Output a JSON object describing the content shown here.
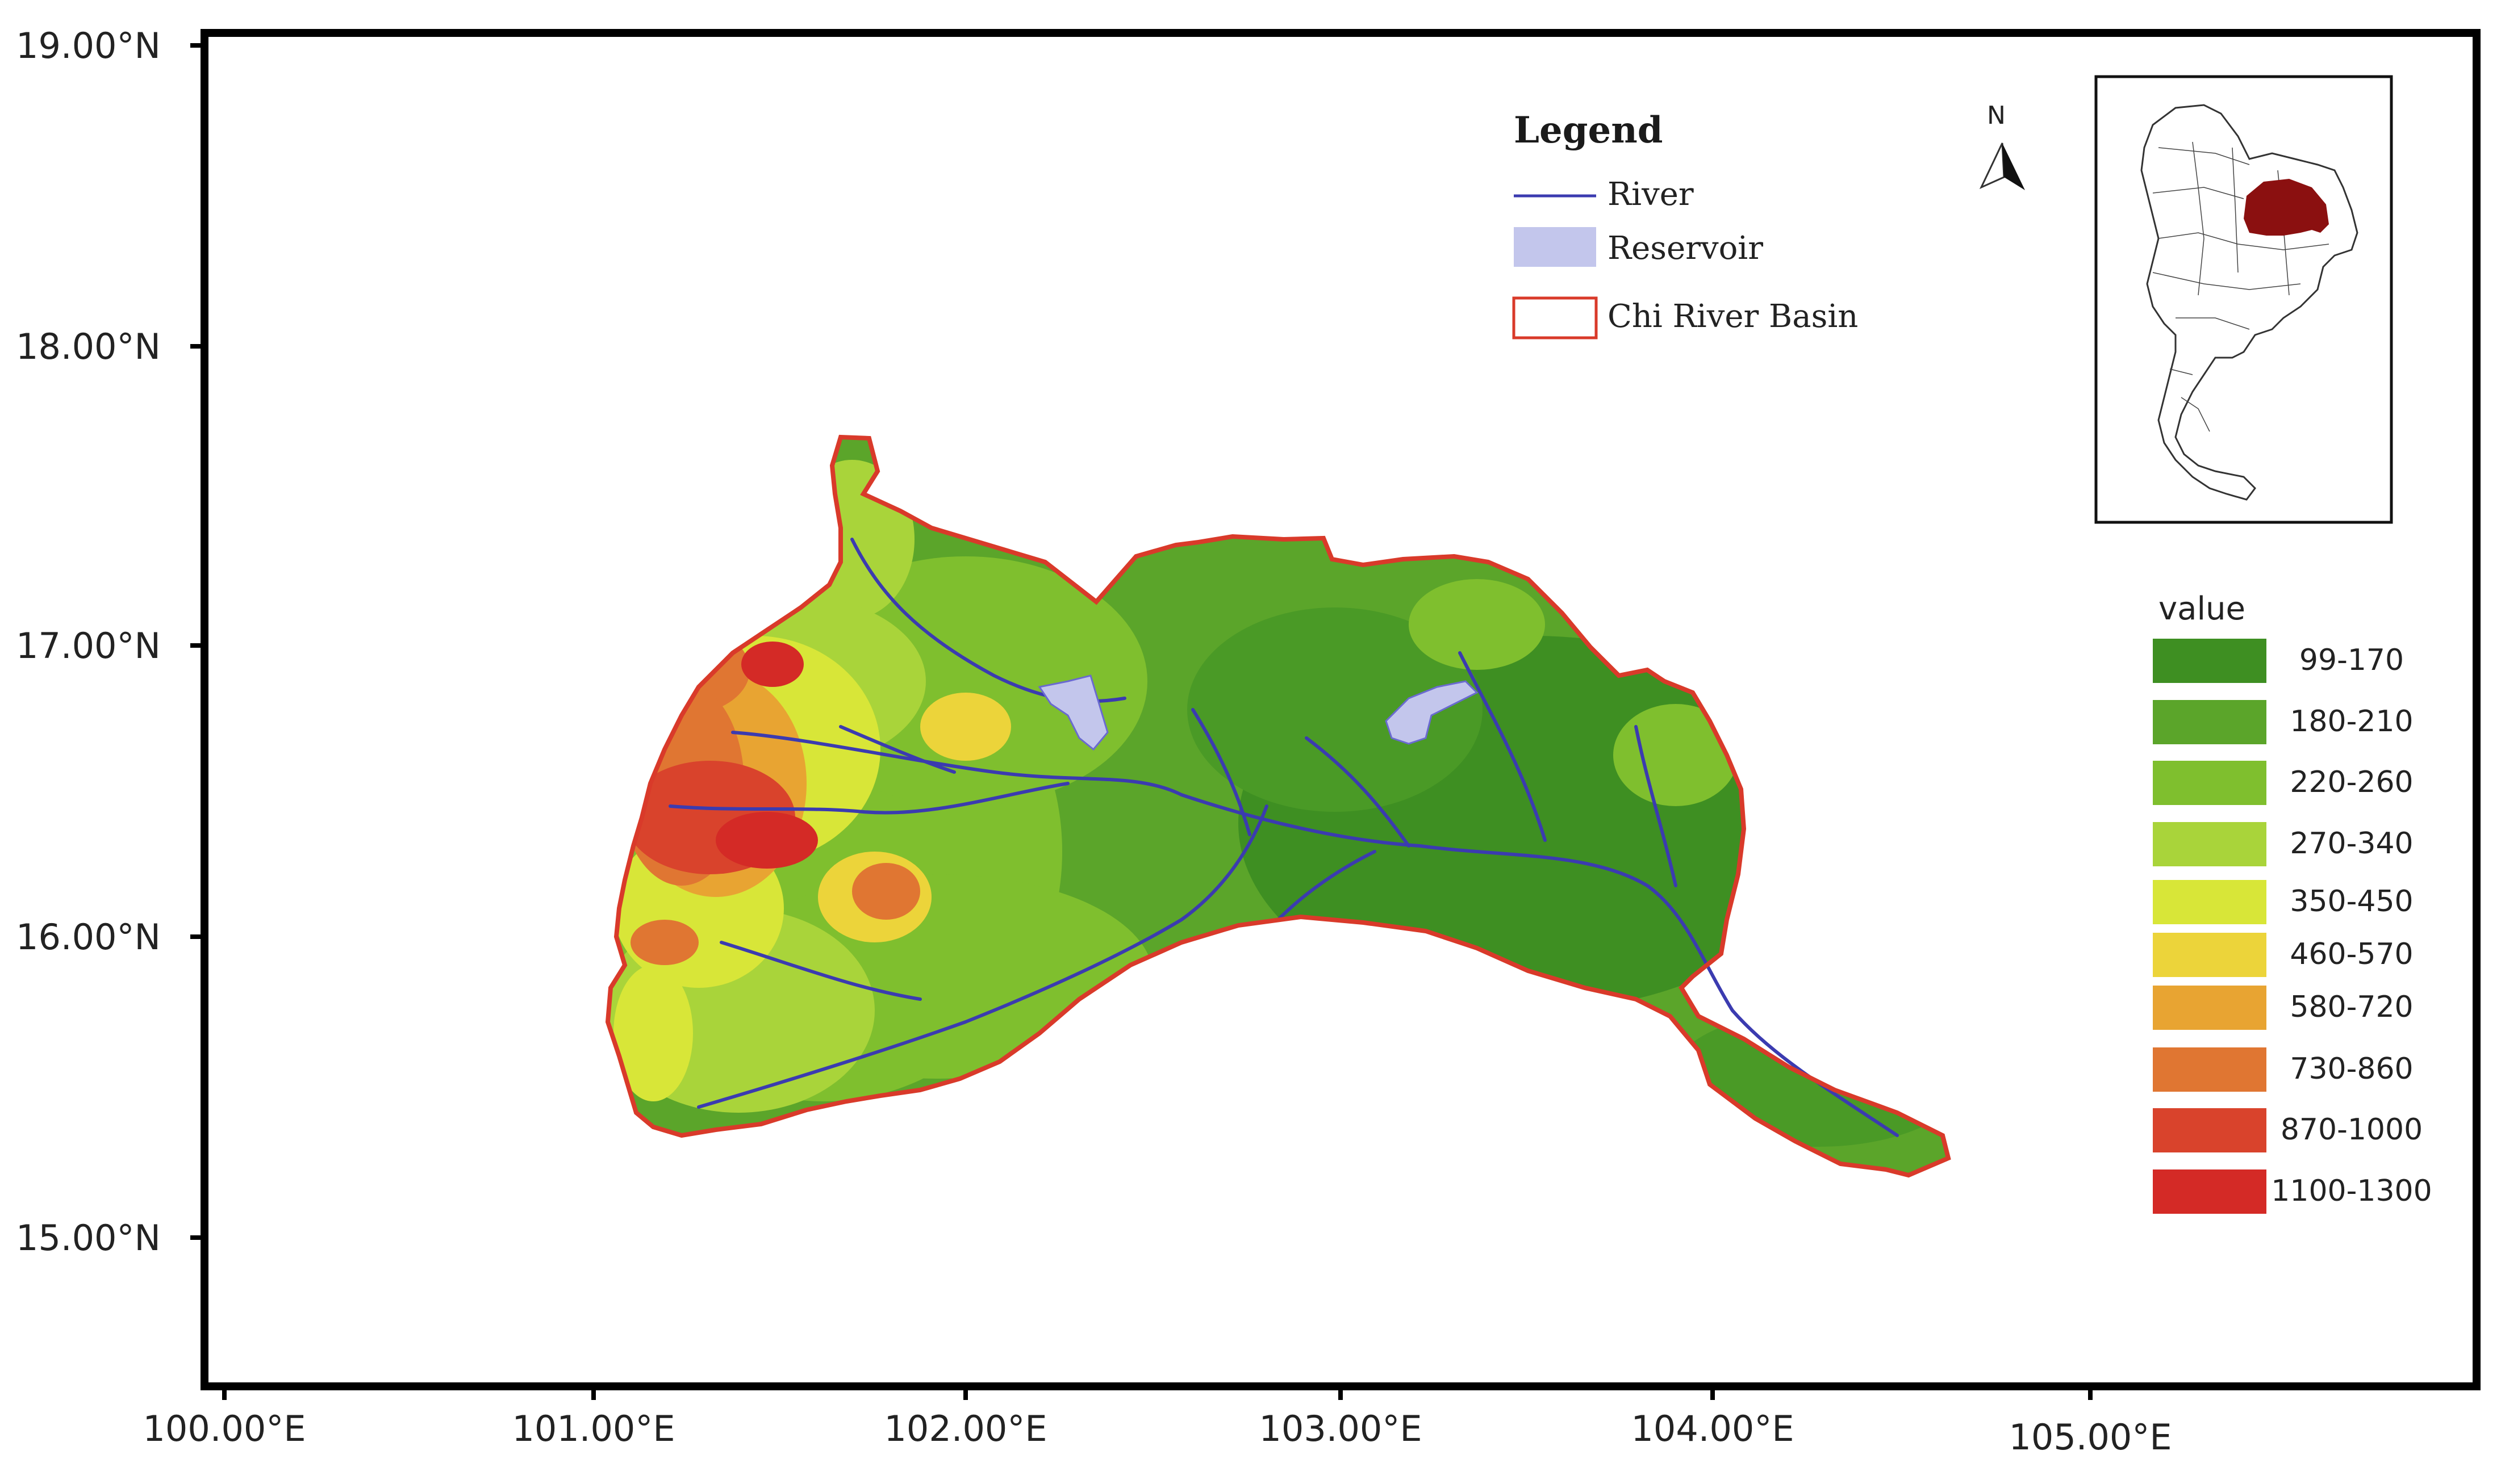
{
  "map": {
    "lat_labels": [
      "19.00°N",
      "18.00°N",
      "17.00°N",
      "16.00°N",
      "15.00°N"
    ],
    "lon_labels": [
      "100.00°E",
      "101.00°E",
      "102.00°E",
      "103.00°E",
      "104.00°E",
      "105.00°E"
    ],
    "north_arrow_letter": "N",
    "legend": {
      "title": "Legend",
      "items": [
        {
          "label": "River",
          "symbol": "line",
          "color": "#3b3bb0"
        },
        {
          "label": "Reservoir",
          "symbol": "fill",
          "color": "#c3c6ec"
        },
        {
          "label": "Chi River Basin",
          "symbol": "outline",
          "color": "#d93a2a"
        }
      ]
    },
    "elevation_scale": {
      "title": "value",
      "classes": [
        {
          "label": "99-170",
          "color": "#3e8f22"
        },
        {
          "label": "180-210",
          "color": "#5ba52a"
        },
        {
          "label": "220-260",
          "color": "#7fbf2e"
        },
        {
          "label": "270-340",
          "color": "#a9d43a"
        },
        {
          "label": "350-450",
          "color": "#d8e638"
        },
        {
          "label": "460-570",
          "color": "#ecd43a"
        },
        {
          "label": "580-720",
          "color": "#e8a432"
        },
        {
          "label": "730-860",
          "color": "#e07632"
        },
        {
          "label": "870-1000",
          "color": "#d9432c"
        },
        {
          "label": "1100-1300",
          "color": "#d42a26"
        }
      ]
    },
    "inset": {
      "highlight_color": "#8b1010"
    }
  }
}
